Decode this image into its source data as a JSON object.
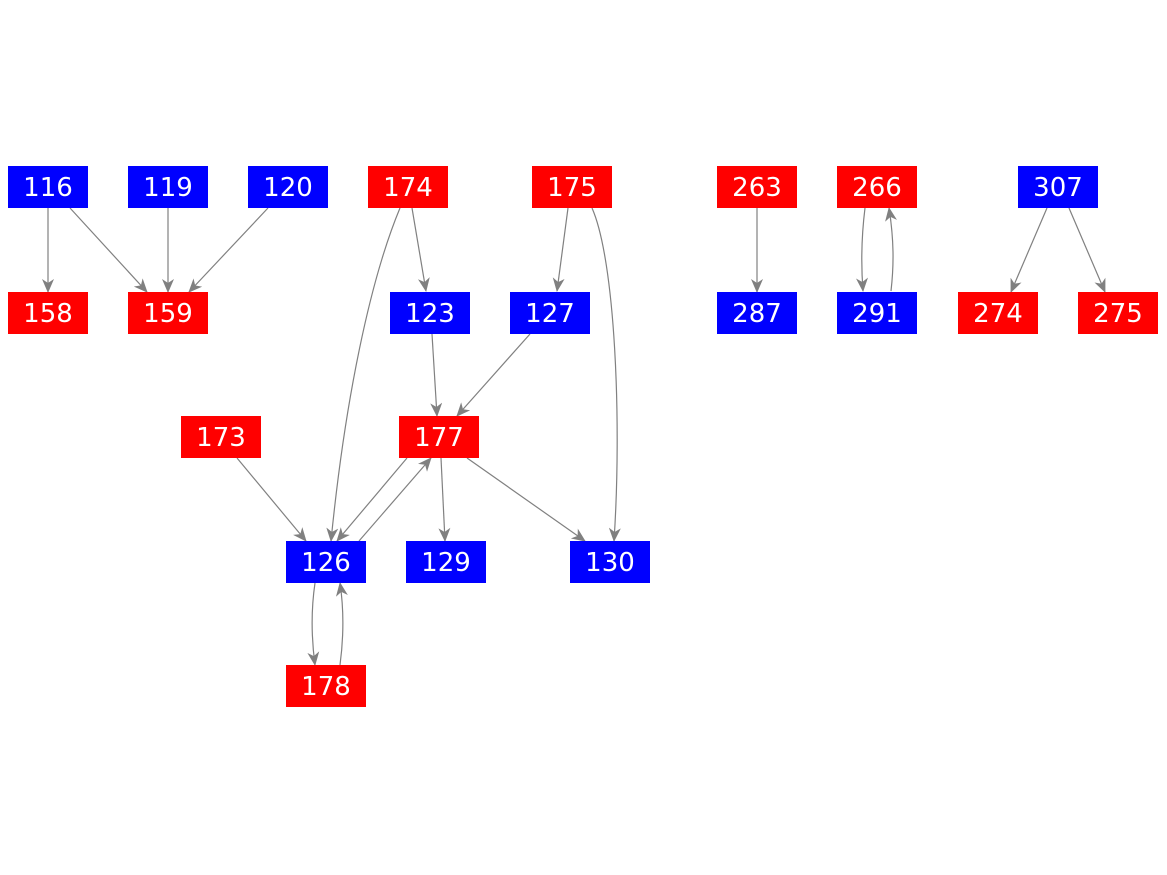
{
  "colors": {
    "red": "#ff0000",
    "blue": "#0000ff",
    "edge": "#808080"
  },
  "nodes": [
    {
      "id": "116",
      "color": "blue"
    },
    {
      "id": "119",
      "color": "blue"
    },
    {
      "id": "120",
      "color": "blue"
    },
    {
      "id": "174",
      "color": "red"
    },
    {
      "id": "175",
      "color": "red"
    },
    {
      "id": "263",
      "color": "red"
    },
    {
      "id": "266",
      "color": "red"
    },
    {
      "id": "307",
      "color": "blue"
    },
    {
      "id": "158",
      "color": "red"
    },
    {
      "id": "159",
      "color": "red"
    },
    {
      "id": "123",
      "color": "blue"
    },
    {
      "id": "127",
      "color": "blue"
    },
    {
      "id": "287",
      "color": "blue"
    },
    {
      "id": "291",
      "color": "blue"
    },
    {
      "id": "274",
      "color": "red"
    },
    {
      "id": "275",
      "color": "red"
    },
    {
      "id": "173",
      "color": "red"
    },
    {
      "id": "177",
      "color": "red"
    },
    {
      "id": "126",
      "color": "blue"
    },
    {
      "id": "129",
      "color": "blue"
    },
    {
      "id": "130",
      "color": "blue"
    },
    {
      "id": "178",
      "color": "red"
    }
  ],
  "edges": [
    {
      "from": "116",
      "to": "158"
    },
    {
      "from": "116",
      "to": "159"
    },
    {
      "from": "119",
      "to": "159"
    },
    {
      "from": "120",
      "to": "159"
    },
    {
      "from": "174",
      "to": "123"
    },
    {
      "from": "174",
      "to": "126"
    },
    {
      "from": "175",
      "to": "127"
    },
    {
      "from": "175",
      "to": "130"
    },
    {
      "from": "263",
      "to": "287"
    },
    {
      "from": "266",
      "to": "291"
    },
    {
      "from": "291",
      "to": "266"
    },
    {
      "from": "307",
      "to": "274"
    },
    {
      "from": "307",
      "to": "275"
    },
    {
      "from": "123",
      "to": "177"
    },
    {
      "from": "127",
      "to": "177"
    },
    {
      "from": "173",
      "to": "126"
    },
    {
      "from": "177",
      "to": "126"
    },
    {
      "from": "126",
      "to": "177"
    },
    {
      "from": "177",
      "to": "129"
    },
    {
      "from": "177",
      "to": "130"
    },
    {
      "from": "126",
      "to": "178"
    },
    {
      "from": "178",
      "to": "126"
    }
  ]
}
